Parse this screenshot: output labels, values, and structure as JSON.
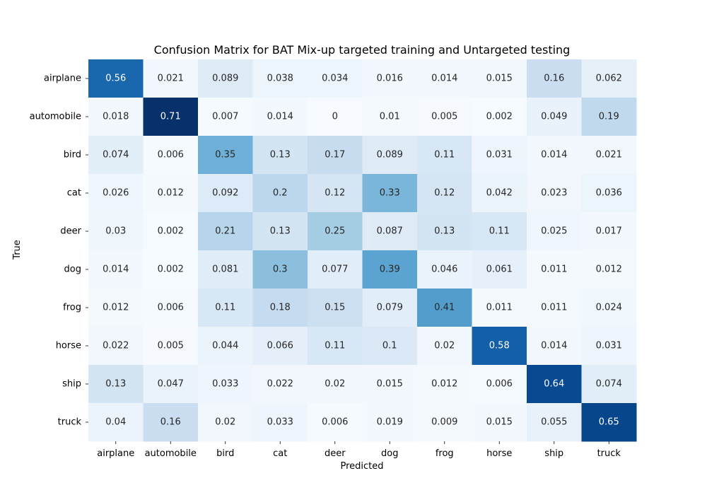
{
  "chart_data": {
    "type": "heatmap",
    "title": "Confusion Matrix for BAT Mix-up targeted training and Untargeted testing",
    "xlabel": "Predicted",
    "ylabel": "True",
    "x_categories": [
      "airplane",
      "automobile",
      "bird",
      "cat",
      "deer",
      "dog",
      "frog",
      "horse",
      "ship",
      "truck"
    ],
    "y_categories": [
      "airplane",
      "automobile",
      "bird",
      "cat",
      "deer",
      "dog",
      "frog",
      "horse",
      "ship",
      "truck"
    ],
    "values": [
      [
        0.56,
        0.021,
        0.089,
        0.038,
        0.034,
        0.016,
        0.014,
        0.015,
        0.16,
        0.062
      ],
      [
        0.018,
        0.71,
        0.007,
        0.014,
        0,
        0.01,
        0.005,
        0.002,
        0.049,
        0.19
      ],
      [
        0.074,
        0.006,
        0.35,
        0.13,
        0.17,
        0.089,
        0.11,
        0.031,
        0.014,
        0.021
      ],
      [
        0.026,
        0.012,
        0.092,
        0.2,
        0.12,
        0.33,
        0.12,
        0.042,
        0.023,
        0.036
      ],
      [
        0.03,
        0.002,
        0.21,
        0.13,
        0.25,
        0.087,
        0.13,
        0.11,
        0.025,
        0.017
      ],
      [
        0.014,
        0.002,
        0.081,
        0.3,
        0.077,
        0.39,
        0.046,
        0.061,
        0.011,
        0.012
      ],
      [
        0.012,
        0.006,
        0.11,
        0.18,
        0.15,
        0.079,
        0.41,
        0.011,
        0.011,
        0.024
      ],
      [
        0.022,
        0.005,
        0.044,
        0.066,
        0.11,
        0.1,
        0.02,
        0.58,
        0.014,
        0.031
      ],
      [
        0.13,
        0.047,
        0.033,
        0.022,
        0.02,
        0.015,
        0.012,
        0.006,
        0.64,
        0.074
      ],
      [
        0.04,
        0.16,
        0.02,
        0.033,
        0.006,
        0.019,
        0.009,
        0.015,
        0.055,
        0.65
      ]
    ],
    "colormap": "Blues",
    "value_range": [
      0,
      0.71
    ],
    "colorbar": false,
    "grid": false
  }
}
